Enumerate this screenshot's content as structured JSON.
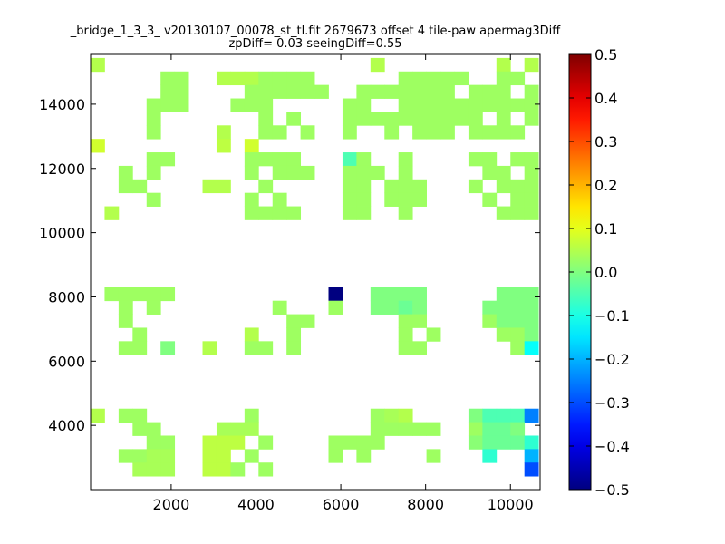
{
  "chart_data": {
    "type": "heatmap",
    "title_line1": "_bridge_1_3_3_ v20130107_00078_st_tl.fit 2679673 offset 4 tile-paw apermag3Diff",
    "title_line2": "zpDiff= 0.03 seeingDiff=0.55",
    "xlabel": "",
    "ylabel": "",
    "xlim": [
      100,
      10700
    ],
    "ylim": [
      2000,
      15550
    ],
    "xticks": [
      2000,
      4000,
      6000,
      8000,
      10000
    ],
    "yticks": [
      4000,
      6000,
      8000,
      10000,
      12000,
      14000
    ],
    "grid": false,
    "colorbar": {
      "min": -0.5,
      "max": 0.5,
      "ticks": [
        -0.5,
        -0.4,
        -0.3,
        -0.2,
        -0.1,
        0.0,
        0.1,
        0.2,
        0.3,
        0.4,
        0.5
      ],
      "tick_labels": [
        "−0.5",
        "−0.4",
        "−0.3",
        "−0.2",
        "−0.1",
        "0.0",
        "0.1",
        "0.2",
        "0.3",
        "0.4",
        "0.5"
      ],
      "colormap": "jet"
    },
    "grid_origin": [
      100,
      2000
    ],
    "cell_size": [
      330,
      420
    ],
    "n_cols": 32,
    "n_rows": 32,
    "cells": [
      [
        0,
        31,
        0.05
      ],
      [
        20,
        31,
        0.05
      ],
      [
        29,
        31,
        0.05
      ],
      [
        31,
        31,
        0.05
      ],
      [
        5,
        30,
        0.03
      ],
      [
        6,
        30,
        0.03
      ],
      [
        9,
        30,
        0.05
      ],
      [
        10,
        30,
        0.05
      ],
      [
        11,
        30,
        0.05
      ],
      [
        12,
        30,
        0.03
      ],
      [
        13,
        30,
        0.03
      ],
      [
        14,
        30,
        0.03
      ],
      [
        15,
        30,
        0.03
      ],
      [
        22,
        30,
        0.03
      ],
      [
        23,
        30,
        0.03
      ],
      [
        24,
        30,
        0.03
      ],
      [
        25,
        30,
        0.03
      ],
      [
        26,
        30,
        0.03
      ],
      [
        29,
        30,
        0.03
      ],
      [
        30,
        30,
        0.03
      ],
      [
        5,
        29,
        0.03
      ],
      [
        6,
        29,
        0.03
      ],
      [
        11,
        29,
        0.03
      ],
      [
        12,
        29,
        0.03
      ],
      [
        13,
        29,
        0.03
      ],
      [
        14,
        29,
        0.03
      ],
      [
        15,
        29,
        0.03
      ],
      [
        16,
        29,
        0.03
      ],
      [
        19,
        29,
        0.03
      ],
      [
        20,
        29,
        0.03
      ],
      [
        21,
        29,
        0.03
      ],
      [
        22,
        29,
        0.03
      ],
      [
        23,
        29,
        0.03
      ],
      [
        24,
        29,
        0.03
      ],
      [
        25,
        29,
        0.03
      ],
      [
        27,
        29,
        0.03
      ],
      [
        28,
        29,
        0.03
      ],
      [
        29,
        29,
        0.03
      ],
      [
        31,
        29,
        0.03
      ],
      [
        4,
        28,
        0.03
      ],
      [
        5,
        28,
        0.03
      ],
      [
        6,
        28,
        0.03
      ],
      [
        10,
        28,
        0.03
      ],
      [
        11,
        28,
        0.03
      ],
      [
        12,
        28,
        0.03
      ],
      [
        18,
        28,
        0.03
      ],
      [
        19,
        28,
        0.03
      ],
      [
        22,
        28,
        0.03
      ],
      [
        23,
        28,
        0.03
      ],
      [
        24,
        28,
        0.03
      ],
      [
        25,
        28,
        0.03
      ],
      [
        26,
        28,
        0.03
      ],
      [
        27,
        28,
        0.03
      ],
      [
        28,
        28,
        0.03
      ],
      [
        29,
        28,
        0.03
      ],
      [
        30,
        28,
        0.03
      ],
      [
        31,
        28,
        0.03
      ],
      [
        4,
        27,
        0.03
      ],
      [
        12,
        27,
        0.03
      ],
      [
        14,
        27,
        0.03
      ],
      [
        18,
        27,
        0.03
      ],
      [
        19,
        27,
        0.03
      ],
      [
        20,
        27,
        0.03
      ],
      [
        21,
        27,
        0.03
      ],
      [
        22,
        27,
        0.03
      ],
      [
        23,
        27,
        0.03
      ],
      [
        24,
        27,
        0.03
      ],
      [
        25,
        27,
        0.03
      ],
      [
        26,
        27,
        0.03
      ],
      [
        27,
        27,
        0.03
      ],
      [
        29,
        27,
        0.03
      ],
      [
        31,
        27,
        0.03
      ],
      [
        4,
        26,
        0.03
      ],
      [
        9,
        26,
        0.05
      ],
      [
        12,
        26,
        0.03
      ],
      [
        13,
        26,
        0.03
      ],
      [
        15,
        26,
        0.03
      ],
      [
        18,
        26,
        0.03
      ],
      [
        21,
        26,
        0.03
      ],
      [
        23,
        26,
        0.03
      ],
      [
        24,
        26,
        0.03
      ],
      [
        25,
        26,
        0.03
      ],
      [
        27,
        26,
        0.03
      ],
      [
        28,
        26,
        0.03
      ],
      [
        29,
        26,
        0.03
      ],
      [
        30,
        26,
        0.03
      ],
      [
        0,
        25,
        0.08
      ],
      [
        9,
        25,
        0.06
      ],
      [
        11,
        25,
        0.08
      ],
      [
        4,
        24,
        0.03
      ],
      [
        5,
        24,
        0.03
      ],
      [
        11,
        24,
        0.03
      ],
      [
        12,
        24,
        0.03
      ],
      [
        13,
        24,
        0.03
      ],
      [
        14,
        24,
        0.03
      ],
      [
        18,
        24,
        -0.05
      ],
      [
        19,
        24,
        0.03
      ],
      [
        22,
        24,
        0.03
      ],
      [
        27,
        24,
        0.03
      ],
      [
        28,
        24,
        0.03
      ],
      [
        30,
        24,
        0.03
      ],
      [
        31,
        24,
        0.03
      ],
      [
        2,
        23,
        0.03
      ],
      [
        4,
        23,
        0.03
      ],
      [
        11,
        23,
        0.03
      ],
      [
        13,
        23,
        0.03
      ],
      [
        14,
        23,
        0.03
      ],
      [
        15,
        23,
        0.03
      ],
      [
        18,
        23,
        0.03
      ],
      [
        19,
        23,
        0.03
      ],
      [
        20,
        23,
        0.03
      ],
      [
        22,
        23,
        0.03
      ],
      [
        28,
        23,
        0.03
      ],
      [
        29,
        23,
        0.03
      ],
      [
        31,
        23,
        0.03
      ],
      [
        2,
        22,
        0.03
      ],
      [
        3,
        22,
        0.03
      ],
      [
        8,
        22,
        0.05
      ],
      [
        9,
        22,
        0.05
      ],
      [
        12,
        22,
        0.03
      ],
      [
        18,
        22,
        0.03
      ],
      [
        19,
        22,
        0.03
      ],
      [
        21,
        22,
        0.03
      ],
      [
        22,
        22,
        0.03
      ],
      [
        23,
        22,
        0.03
      ],
      [
        27,
        22,
        0.03
      ],
      [
        29,
        22,
        0.03
      ],
      [
        30,
        22,
        0.03
      ],
      [
        31,
        22,
        0.03
      ],
      [
        4,
        21,
        0.03
      ],
      [
        11,
        21,
        0.03
      ],
      [
        13,
        21,
        0.03
      ],
      [
        18,
        21,
        0.03
      ],
      [
        19,
        21,
        0.03
      ],
      [
        21,
        21,
        0.03
      ],
      [
        22,
        21,
        0.03
      ],
      [
        23,
        21,
        0.03
      ],
      [
        28,
        21,
        0.03
      ],
      [
        30,
        21,
        0.03
      ],
      [
        31,
        21,
        0.03
      ],
      [
        1,
        20,
        0.05
      ],
      [
        11,
        20,
        0.03
      ],
      [
        12,
        20,
        0.03
      ],
      [
        13,
        20,
        0.03
      ],
      [
        14,
        20,
        0.03
      ],
      [
        18,
        20,
        0.03
      ],
      [
        19,
        20,
        0.03
      ],
      [
        22,
        20,
        0.03
      ],
      [
        29,
        20,
        0.03
      ],
      [
        30,
        20,
        0.03
      ],
      [
        31,
        20,
        0.03
      ],
      [
        1,
        14,
        0.03
      ],
      [
        2,
        14,
        0.03
      ],
      [
        3,
        14,
        0.03
      ],
      [
        4,
        14,
        0.03
      ],
      [
        5,
        14,
        0.03
      ],
      [
        17,
        14,
        -0.5
      ],
      [
        20,
        14,
        0.0
      ],
      [
        21,
        14,
        0.0
      ],
      [
        22,
        14,
        0.0
      ],
      [
        23,
        14,
        0.0
      ],
      [
        29,
        14,
        0.0
      ],
      [
        30,
        14,
        0.0
      ],
      [
        31,
        14,
        0.0
      ],
      [
        2,
        13,
        0.03
      ],
      [
        4,
        13,
        0.03
      ],
      [
        13,
        13,
        0.03
      ],
      [
        17,
        13,
        0.03
      ],
      [
        20,
        13,
        0.0
      ],
      [
        21,
        13,
        0.0
      ],
      [
        22,
        13,
        -0.02
      ],
      [
        23,
        13,
        0.0
      ],
      [
        28,
        13,
        0.0
      ],
      [
        29,
        13,
        0.0
      ],
      [
        30,
        13,
        0.0
      ],
      [
        31,
        13,
        0.0
      ],
      [
        2,
        12,
        0.03
      ],
      [
        14,
        12,
        0.03
      ],
      [
        15,
        12,
        0.03
      ],
      [
        22,
        12,
        0.03
      ],
      [
        23,
        12,
        0.03
      ],
      [
        28,
        12,
        0.03
      ],
      [
        29,
        12,
        0.0
      ],
      [
        30,
        12,
        0.0
      ],
      [
        31,
        12,
        0.0
      ],
      [
        3,
        11,
        0.03
      ],
      [
        11,
        11,
        0.05
      ],
      [
        14,
        11,
        0.03
      ],
      [
        22,
        11,
        0.03
      ],
      [
        24,
        11,
        0.03
      ],
      [
        29,
        11,
        0.03
      ],
      [
        30,
        11,
        0.03
      ],
      [
        31,
        11,
        0.0
      ],
      [
        2,
        10,
        0.03
      ],
      [
        3,
        10,
        0.03
      ],
      [
        5,
        10,
        0.0
      ],
      [
        8,
        10,
        0.05
      ],
      [
        11,
        10,
        0.03
      ],
      [
        12,
        10,
        0.03
      ],
      [
        14,
        10,
        0.03
      ],
      [
        22,
        10,
        0.03
      ],
      [
        23,
        10,
        0.03
      ],
      [
        30,
        10,
        0.03
      ],
      [
        31,
        10,
        -0.12
      ],
      [
        0,
        5,
        0.05
      ],
      [
        2,
        5,
        0.03
      ],
      [
        3,
        5,
        0.03
      ],
      [
        11,
        5,
        0.03
      ],
      [
        20,
        5,
        0.03
      ],
      [
        21,
        5,
        0.04
      ],
      [
        22,
        5,
        0.05
      ],
      [
        27,
        5,
        0.0
      ],
      [
        28,
        5,
        -0.05
      ],
      [
        29,
        5,
        -0.05
      ],
      [
        30,
        5,
        -0.05
      ],
      [
        31,
        5,
        -0.25
      ],
      [
        3,
        4,
        0.03
      ],
      [
        4,
        4,
        0.03
      ],
      [
        9,
        4,
        0.04
      ],
      [
        10,
        4,
        0.04
      ],
      [
        11,
        4,
        0.04
      ],
      [
        20,
        4,
        0.03
      ],
      [
        21,
        4,
        0.03
      ],
      [
        22,
        4,
        0.03
      ],
      [
        23,
        4,
        0.03
      ],
      [
        24,
        4,
        0.03
      ],
      [
        27,
        4,
        0.03
      ],
      [
        28,
        4,
        -0.02
      ],
      [
        29,
        4,
        -0.02
      ],
      [
        30,
        4,
        0.0
      ],
      [
        4,
        3,
        0.03
      ],
      [
        5,
        3,
        0.03
      ],
      [
        8,
        3,
        0.06
      ],
      [
        9,
        3,
        0.06
      ],
      [
        10,
        3,
        0.06
      ],
      [
        12,
        3,
        0.03
      ],
      [
        17,
        3,
        0.03
      ],
      [
        18,
        3,
        0.03
      ],
      [
        19,
        3,
        0.03
      ],
      [
        20,
        3,
        0.03
      ],
      [
        27,
        3,
        0.01
      ],
      [
        28,
        3,
        -0.02
      ],
      [
        29,
        3,
        -0.02
      ],
      [
        30,
        3,
        -0.02
      ],
      [
        31,
        3,
        -0.08
      ],
      [
        2,
        2,
        0.03
      ],
      [
        3,
        2,
        0.03
      ],
      [
        4,
        2,
        0.04
      ],
      [
        5,
        2,
        0.04
      ],
      [
        8,
        2,
        0.06
      ],
      [
        9,
        2,
        0.06
      ],
      [
        11,
        2,
        0.03
      ],
      [
        17,
        2,
        0.03
      ],
      [
        19,
        2,
        0.03
      ],
      [
        24,
        2,
        0.03
      ],
      [
        28,
        2,
        -0.08
      ],
      [
        31,
        2,
        -0.2
      ],
      [
        3,
        1,
        0.04
      ],
      [
        4,
        1,
        0.04
      ],
      [
        5,
        1,
        0.04
      ],
      [
        8,
        1,
        0.06
      ],
      [
        9,
        1,
        0.06
      ],
      [
        10,
        1,
        0.03
      ],
      [
        12,
        1,
        0.03
      ],
      [
        31,
        1,
        -0.3
      ]
    ]
  }
}
